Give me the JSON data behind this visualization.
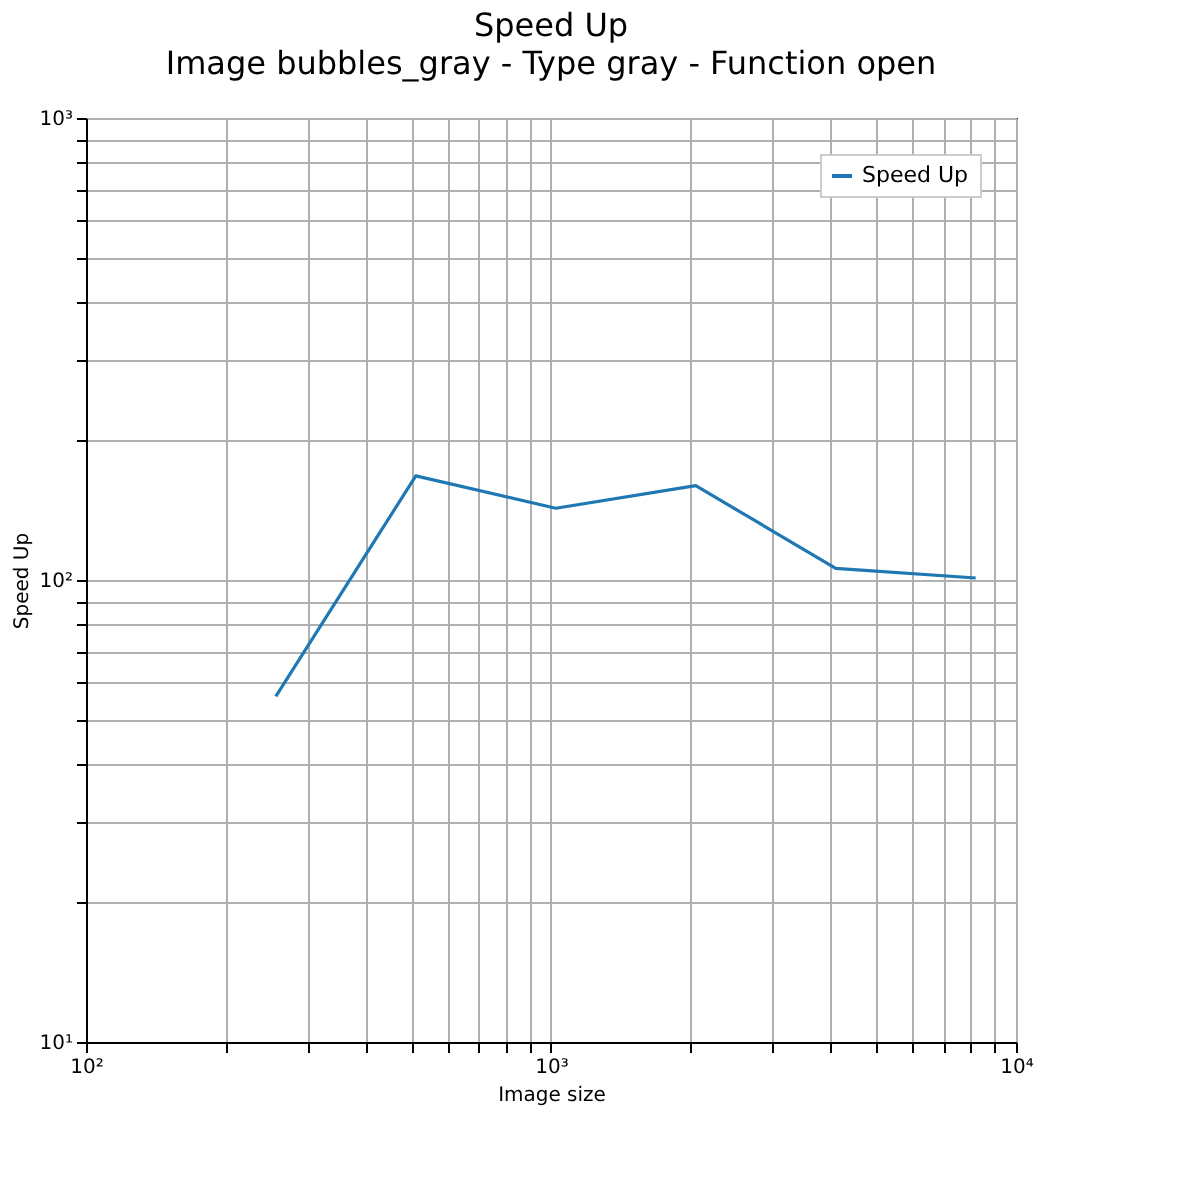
{
  "chart_data": {
    "type": "line",
    "title": "Speed Up",
    "subtitle": "Image bubbles_gray - Type gray - Function open",
    "xlabel": "Image size",
    "ylabel": "Speed Up",
    "x": [
      256,
      512,
      1024,
      2048,
      4096,
      8192
    ],
    "series": [
      {
        "name": "Speed Up",
        "color": "#1f77b4",
        "values": [
          56,
          168,
          143,
          160,
          106,
          101
        ]
      }
    ],
    "log": "xy",
    "xlim": [
      100,
      10000
    ],
    "ylim": [
      10,
      1000
    ],
    "xticks": [
      {
        "value": 100,
        "label": "10²"
      },
      {
        "value": 200,
        "label": null
      },
      {
        "value": 300,
        "label": null
      },
      {
        "value": 400,
        "label": null
      },
      {
        "value": 500,
        "label": null
      },
      {
        "value": 600,
        "label": null
      },
      {
        "value": 700,
        "label": null
      },
      {
        "value": 800,
        "label": null
      },
      {
        "value": 900,
        "label": null
      },
      {
        "value": 1000,
        "label": "10³"
      },
      {
        "value": 2000,
        "label": null
      },
      {
        "value": 3000,
        "label": null
      },
      {
        "value": 4000,
        "label": null
      },
      {
        "value": 5000,
        "label": null
      },
      {
        "value": 6000,
        "label": null
      },
      {
        "value": 7000,
        "label": null
      },
      {
        "value": 8000,
        "label": null
      },
      {
        "value": 9000,
        "label": null
      },
      {
        "value": 10000,
        "label": "10⁴"
      }
    ],
    "yticks": [
      {
        "value": 10,
        "label": "10¹"
      },
      {
        "value": 20,
        "label": null
      },
      {
        "value": 30,
        "label": null
      },
      {
        "value": 40,
        "label": null
      },
      {
        "value": 50,
        "label": null
      },
      {
        "value": 60,
        "label": null
      },
      {
        "value": 70,
        "label": null
      },
      {
        "value": 80,
        "label": null
      },
      {
        "value": 90,
        "label": null
      },
      {
        "value": 100,
        "label": "10²"
      },
      {
        "value": 200,
        "label": null
      },
      {
        "value": 300,
        "label": null
      },
      {
        "value": 400,
        "label": null
      },
      {
        "value": 500,
        "label": null
      },
      {
        "value": 600,
        "label": null
      },
      {
        "value": 700,
        "label": null
      },
      {
        "value": 800,
        "label": null
      },
      {
        "value": 900,
        "label": null
      },
      {
        "value": 1000,
        "label": "10³"
      }
    ],
    "grid": true,
    "legend": "top right",
    "line_style": "solid",
    "marker": "none"
  }
}
